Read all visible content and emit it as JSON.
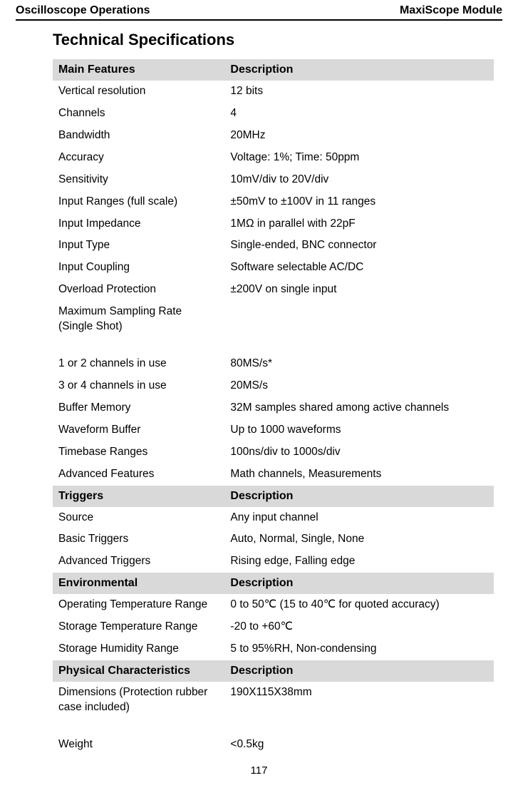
{
  "header": {
    "left": "Oscilloscope Operations",
    "right": "MaxiScope Module"
  },
  "title": "Technical Specifications",
  "page_number": "117",
  "colors": {
    "section_header_bg": "#d9d9d9",
    "text": "#000000",
    "rule": "#000000",
    "page_bg": "#ffffff"
  },
  "sections": [
    {
      "header_left": "Main Features",
      "header_right": "Description",
      "rows": [
        {
          "feat": "Vertical resolution",
          "desc": "12 bits"
        },
        {
          "feat": "Channels",
          "desc": "4"
        },
        {
          "feat": "Bandwidth",
          "desc": "20MHz"
        },
        {
          "feat": "Accuracy",
          "desc": "Voltage: 1%; Time: 50ppm"
        },
        {
          "feat": "Sensitivity",
          "desc": "10mV/div to 20V/div"
        },
        {
          "feat": "Input Ranges (full scale)",
          "desc": "±50mV to  ±100V in 11 ranges"
        },
        {
          "feat": "Input Impedance",
          "desc": "1MΩ in parallel with 22pF"
        },
        {
          "feat": "Input Type",
          "desc": "Single-ended, BNC connector"
        },
        {
          "feat": "Input Coupling",
          "desc": "Software selectable AC/DC"
        },
        {
          "feat": "Overload Protection",
          "desc": "±200V on single input"
        },
        {
          "feat": "Maximum Sampling Rate (Single Shot)",
          "desc": "",
          "justify": true
        },
        {
          "feat": "1 or 2 channels in use",
          "desc": "80MS/s*"
        },
        {
          "feat": "3 or 4 channels in use",
          "desc": "20MS/s"
        },
        {
          "feat": "Buffer Memory",
          "desc": "32M samples shared among active channels"
        },
        {
          "feat": "Waveform Buffer",
          "desc": "Up to 1000 waveforms"
        },
        {
          "feat": "Timebase Ranges",
          "desc": "100ns/div to 1000s/div"
        },
        {
          "feat": "Advanced Features",
          "desc": "Math channels, Measurements"
        }
      ]
    },
    {
      "header_left": "Triggers",
      "header_right": "Description",
      "rows": [
        {
          "feat": "Source",
          "desc": "Any input channel"
        },
        {
          "feat": "Basic Triggers",
          "desc": "Auto, Normal, Single, None"
        },
        {
          "feat": "Advanced Triggers",
          "desc": "Rising edge, Falling edge"
        }
      ]
    },
    {
      "header_left": "Environmental",
      "header_right": "Description",
      "rows": [
        {
          "feat": "Operating Temperature Range",
          "desc": "0 to 50℃ (15 to 40℃ for quoted accuracy)"
        },
        {
          "feat": "Storage Temperature Range",
          "desc": "-20 to +60℃"
        },
        {
          "feat": "Storage Humidity Range",
          "desc": "5 to 95%RH, Non-condensing"
        }
      ]
    },
    {
      "header_left": "Physical Characteristics",
      "header_right": "Description",
      "rows": [
        {
          "feat": "Dimensions (Protection rubber case included)",
          "desc": "190X115X38mm",
          "justify": true
        },
        {
          "feat": "Weight",
          "desc": "<0.5kg"
        }
      ]
    }
  ]
}
